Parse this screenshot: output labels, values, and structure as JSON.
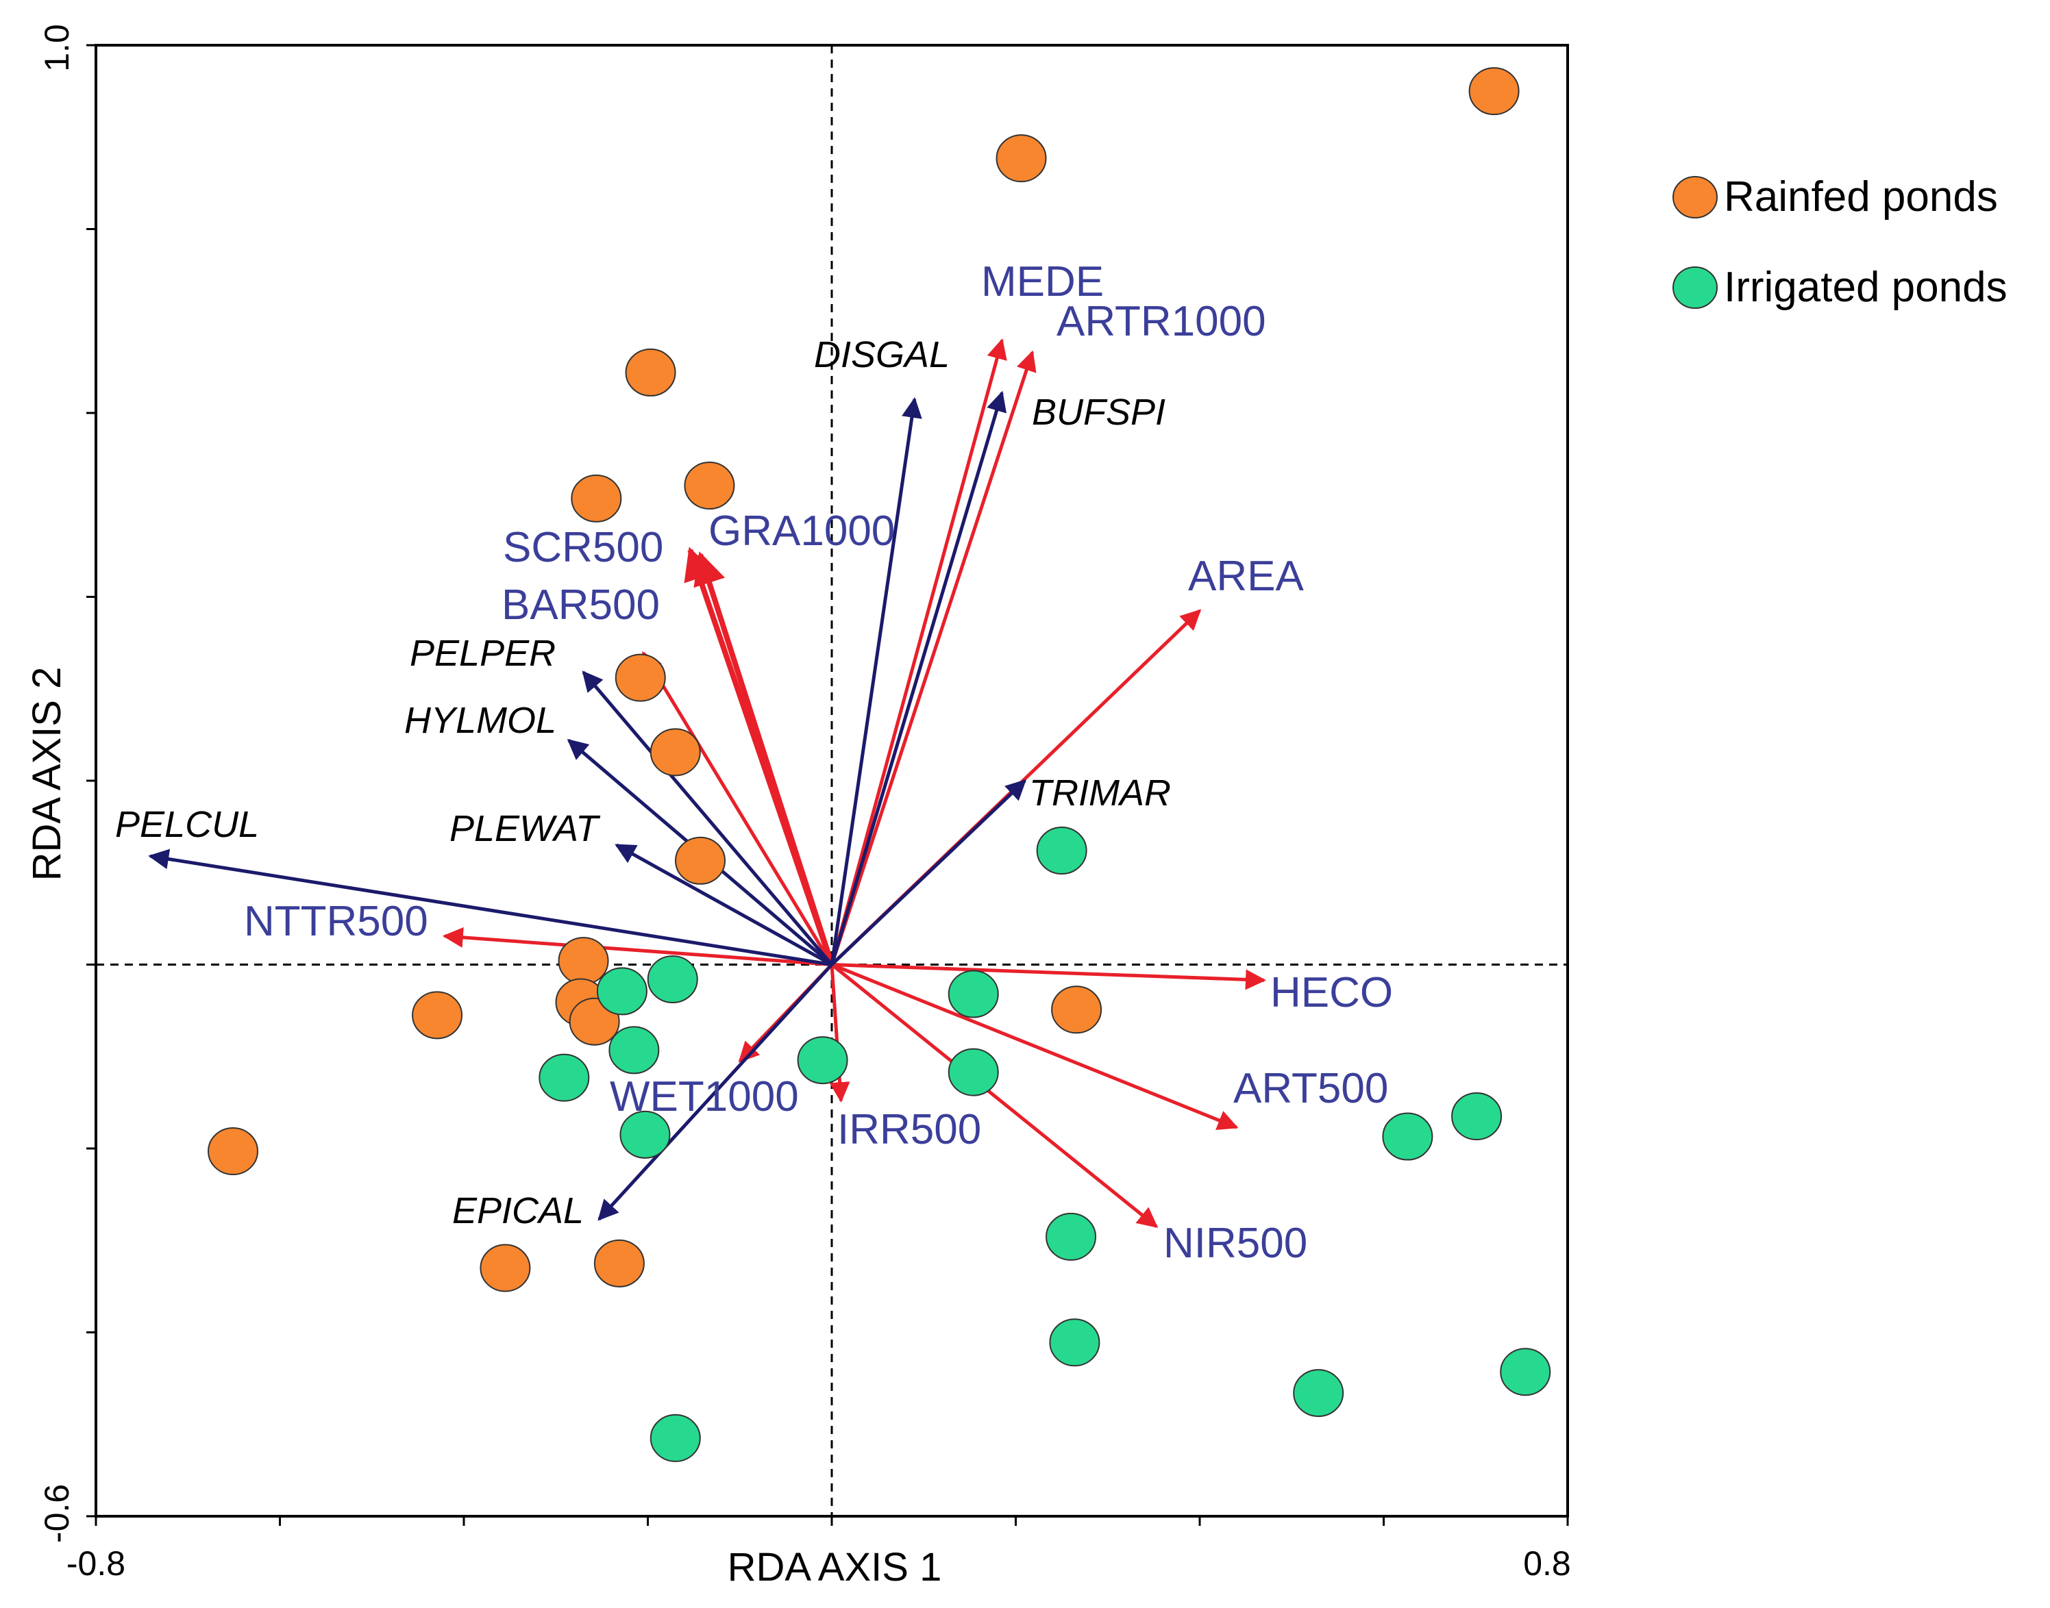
{
  "chart_data": {
    "type": "scatter",
    "title": "",
    "xlabel": "RDA AXIS 1",
    "ylabel": "RDA AXIS 2",
    "xlim": [
      -0.8,
      0.8
    ],
    "ylim": [
      -0.6,
      1.0
    ],
    "x_tick_labels": [
      "-0.8",
      "0.8"
    ],
    "y_tick_labels": [
      "-0.6",
      "1.0"
    ],
    "x_minor_ticks": [
      -0.6,
      -0.4,
      -0.2,
      0.0,
      0.2,
      0.4,
      0.6
    ],
    "y_minor_ticks": [
      -0.4,
      -0.2,
      0.0,
      0.2,
      0.4,
      0.6,
      0.8
    ],
    "grid": false,
    "reference_lines": [
      {
        "axis": "x",
        "value": 0,
        "style": "dashed"
      },
      {
        "axis": "y",
        "value": 0,
        "style": "dashed"
      }
    ],
    "legend_position": "top-right",
    "series": [
      {
        "name": "Rainfed ponds",
        "color": "#f7862f",
        "points": [
          {
            "x": 0.72,
            "y": 0.95
          },
          {
            "x": 0.206,
            "y": 0.877
          },
          {
            "x": -0.197,
            "y": 0.644
          },
          {
            "x": -0.256,
            "y": 0.507
          },
          {
            "x": -0.133,
            "y": 0.521
          },
          {
            "x": -0.208,
            "y": 0.312
          },
          {
            "x": -0.17,
            "y": 0.231
          },
          {
            "x": -0.143,
            "y": 0.113
          },
          {
            "x": -0.27,
            "y": 0.004
          },
          {
            "x": -0.273,
            "y": -0.041
          },
          {
            "x": -0.258,
            "y": -0.062
          },
          {
            "x": -0.429,
            "y": -0.055
          },
          {
            "x": 0.266,
            "y": -0.049
          },
          {
            "x": -0.651,
            "y": -0.203
          },
          {
            "x": -0.355,
            "y": -0.33
          },
          {
            "x": -0.231,
            "y": -0.325
          }
        ]
      },
      {
        "name": "Irrigated ponds",
        "color": "#27d98e",
        "points": [
          {
            "x": 0.25,
            "y": 0.124
          },
          {
            "x": -0.228,
            "y": -0.029
          },
          {
            "x": -0.173,
            "y": -0.016
          },
          {
            "x": 0.154,
            "y": -0.032
          },
          {
            "x": -0.215,
            "y": -0.093
          },
          {
            "x": -0.291,
            "y": -0.123
          },
          {
            "x": -0.01,
            "y": -0.104
          },
          {
            "x": 0.154,
            "y": -0.117
          },
          {
            "x": -0.203,
            "y": -0.185
          },
          {
            "x": 0.626,
            "y": -0.187
          },
          {
            "x": 0.701,
            "y": -0.165
          },
          {
            "x": 0.26,
            "y": -0.296
          },
          {
            "x": 0.264,
            "y": -0.411
          },
          {
            "x": 0.529,
            "y": -0.466
          },
          {
            "x": 0.754,
            "y": -0.443
          },
          {
            "x": -0.17,
            "y": -0.515
          }
        ]
      }
    ],
    "environmental_vectors": [
      {
        "label": "MEDE",
        "x": 0.185,
        "y": 0.679,
        "color": "#e8202a"
      },
      {
        "label": "ARTR1000",
        "x": 0.218,
        "y": 0.666,
        "color": "#e8202a"
      },
      {
        "label": "AREA",
        "x": 0.4,
        "y": 0.385,
        "color": "#e8202a"
      },
      {
        "label": "SCR500",
        "x": -0.154,
        "y": 0.451,
        "color": "#e8202a"
      },
      {
        "label": "GRA1000",
        "x": -0.143,
        "y": 0.446,
        "color": "#e8202a"
      },
      {
        "label": "BAR500",
        "x": -0.205,
        "y": 0.339,
        "color": "#e8202a"
      },
      {
        "label": "NTTR500",
        "x": -0.421,
        "y": 0.031,
        "color": "#e8202a"
      },
      {
        "label": "HECO",
        "x": 0.47,
        "y": -0.017,
        "color": "#e8202a"
      },
      {
        "label": "ART500",
        "x": 0.44,
        "y": -0.177,
        "color": "#e8202a"
      },
      {
        "label": "NIR500",
        "x": 0.353,
        "y": -0.285,
        "color": "#e8202a"
      },
      {
        "label": "WET1000",
        "x": -0.1,
        "y": -0.105,
        "color": "#e8202a"
      },
      {
        "label": "IRR500",
        "x": 0.01,
        "y": -0.148,
        "color": "#e8202a"
      }
    ],
    "species_vectors": [
      {
        "label": "DISGAL",
        "x": 0.09,
        "y": 0.615,
        "color": "#1b1a6b"
      },
      {
        "label": "BUFSPI",
        "x": 0.185,
        "y": 0.622,
        "color": "#1b1a6b"
      },
      {
        "label": "PELPER",
        "x": -0.27,
        "y": 0.318,
        "color": "#1b1a6b"
      },
      {
        "label": "HYLMOL",
        "x": -0.286,
        "y": 0.244,
        "color": "#1b1a6b"
      },
      {
        "label": "PLEWAT",
        "x": -0.234,
        "y": 0.13,
        "color": "#1b1a6b"
      },
      {
        "label": "PELCUL",
        "x": -0.741,
        "y": 0.118,
        "color": "#1b1a6b"
      },
      {
        "label": "TRIMAR",
        "x": 0.21,
        "y": 0.2,
        "color": "#1b1a6b"
      },
      {
        "label": "EPICAL",
        "x": -0.253,
        "y": -0.277,
        "color": "#1b1a6b"
      }
    ]
  }
}
